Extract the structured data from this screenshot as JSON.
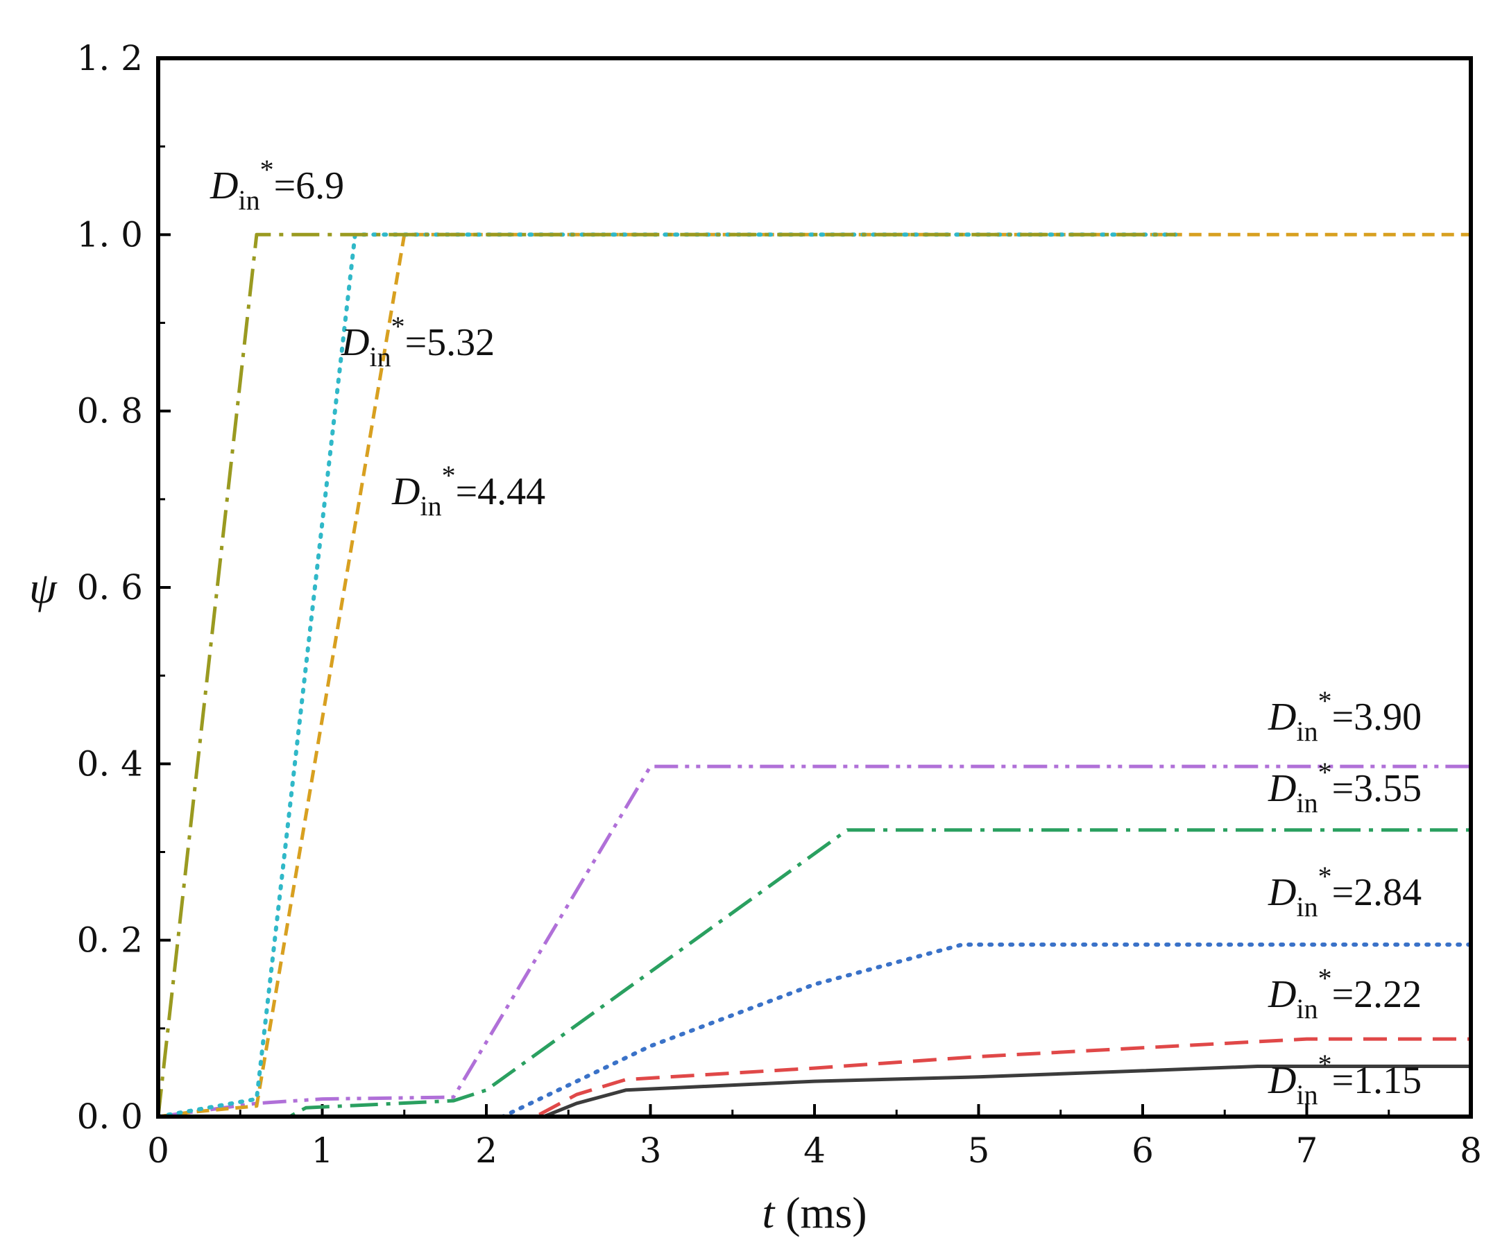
{
  "chart_data": {
    "type": "line",
    "title": "",
    "xlabel": {
      "var": "t",
      "unit": " (ms)"
    },
    "ylabel": "ψ",
    "xlim": [
      0,
      8
    ],
    "ylim": [
      0,
      1.2
    ],
    "x_ticks": [
      0,
      1,
      2,
      3,
      4,
      5,
      6,
      7,
      8
    ],
    "x_tick_labels": [
      "0",
      "1",
      "2",
      "3",
      "4",
      "5",
      "6",
      "7",
      "8"
    ],
    "y_ticks": [
      0,
      0.2,
      0.4,
      0.6,
      0.8,
      1.0,
      1.2
    ],
    "y_tick_labels": [
      "0. 0",
      "0. 2",
      "0. 4",
      "0. 6",
      "0. 8",
      "1. 0",
      "1. 2"
    ],
    "grid": false,
    "legend": "none",
    "series": [
      {
        "name": "D_in*=1.15",
        "label": {
          "base": "D",
          "sub": "in",
          "sup": "*",
          "value": "=1.15"
        },
        "color": "#3c3c3c",
        "dash": "solid",
        "points": [
          [
            0,
            0
          ],
          [
            2.35,
            0
          ],
          [
            2.55,
            0.015
          ],
          [
            2.85,
            0.03
          ],
          [
            4,
            0.04
          ],
          [
            5,
            0.045
          ],
          [
            6,
            0.052
          ],
          [
            6.7,
            0.057
          ],
          [
            8,
            0.057
          ]
        ]
      },
      {
        "name": "D_in*=2.22",
        "label": {
          "base": "D",
          "sub": "in",
          "sup": "*",
          "value": "=2.22"
        },
        "color": "#e04848",
        "dash": "longdash",
        "points": [
          [
            0,
            0
          ],
          [
            2.3,
            0
          ],
          [
            2.55,
            0.025
          ],
          [
            2.85,
            0.042
          ],
          [
            4,
            0.055
          ],
          [
            5,
            0.068
          ],
          [
            6,
            0.078
          ],
          [
            7,
            0.088
          ],
          [
            8,
            0.088
          ]
        ]
      },
      {
        "name": "D_in*=2.84",
        "label": {
          "base": "D",
          "sub": "in",
          "sup": "*",
          "value": "=2.84"
        },
        "color": "#3a72c8",
        "dash": "dot",
        "points": [
          [
            0,
            0
          ],
          [
            2.1,
            0
          ],
          [
            3,
            0.08
          ],
          [
            4,
            0.15
          ],
          [
            4.9,
            0.195
          ],
          [
            8,
            0.195
          ]
        ]
      },
      {
        "name": "D_in*=3.55",
        "label": {
          "base": "D",
          "sub": "in",
          "sup": "*",
          "value": "=3.55"
        },
        "color": "#2aa060",
        "dash": "dashdot",
        "points": [
          [
            0,
            0
          ],
          [
            0.8,
            0
          ],
          [
            0.9,
            0.01
          ],
          [
            1.8,
            0.018
          ],
          [
            2,
            0.03
          ],
          [
            4.2,
            0.325
          ],
          [
            8,
            0.325
          ]
        ]
      },
      {
        "name": "D_in*=3.90",
        "label": {
          "base": "D",
          "sub": "in",
          "sup": "*",
          "value": "=3.90"
        },
        "color": "#b070d8",
        "dash": "dashdotdot",
        "points": [
          [
            0,
            0
          ],
          [
            0.6,
            0.015
          ],
          [
            1,
            0.02
          ],
          [
            1.8,
            0.022
          ],
          [
            3,
            0.397
          ],
          [
            8,
            0.397
          ]
        ]
      },
      {
        "name": "D_in*=4.44",
        "label": {
          "base": "D",
          "sub": "in",
          "sup": "*",
          "value": "=4.44"
        },
        "color": "#d8a020",
        "dash": "shortdash",
        "points": [
          [
            0,
            0
          ],
          [
            0.2,
            0.005
          ],
          [
            0.6,
            0.012
          ],
          [
            1.5,
            1.0
          ],
          [
            8,
            1.0
          ]
        ]
      },
      {
        "name": "D_in*=5.32",
        "label": {
          "base": "D",
          "sub": "in",
          "sup": "*",
          "value": "=5.32"
        },
        "color": "#30b8c8",
        "dash": "dot",
        "points": [
          [
            0,
            0
          ],
          [
            0.6,
            0.02
          ],
          [
            1.2,
            1.0
          ],
          [
            6.2,
            1.0
          ]
        ]
      },
      {
        "name": "D_in*=6.9",
        "label": {
          "base": "D",
          "sub": "in",
          "sup": "*",
          "value": "=6.9"
        },
        "color": "#9a9a20",
        "dash": "dashdot",
        "points": [
          [
            0,
            0
          ],
          [
            0.6,
            1.0
          ],
          [
            6.2,
            1.0
          ]
        ]
      }
    ]
  }
}
